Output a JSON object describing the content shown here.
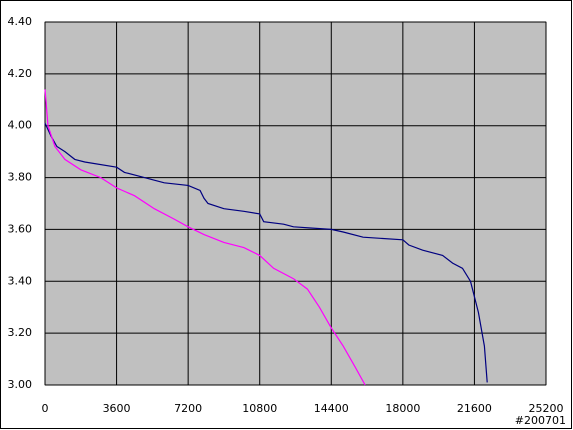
{
  "chart_data": {
    "type": "line",
    "series": [
      {
        "color": "#000080",
        "x": [
          0,
          300,
          600,
          1000,
          1500,
          2000,
          3600,
          4000,
          5000,
          5500,
          6000,
          7200,
          7800,
          8000,
          8200,
          9000,
          10000,
          10800,
          11000,
          12000,
          12500,
          14400,
          15000,
          16000,
          18000,
          18300,
          19000,
          20000,
          20500,
          21000,
          21400,
          21800,
          22100,
          22240
        ],
        "values": [
          4.01,
          3.96,
          3.92,
          3.9,
          3.87,
          3.86,
          3.84,
          3.82,
          3.8,
          3.79,
          3.78,
          3.77,
          3.75,
          3.72,
          3.7,
          3.68,
          3.67,
          3.66,
          3.63,
          3.62,
          3.61,
          3.6,
          3.59,
          3.57,
          3.56,
          3.54,
          3.52,
          3.5,
          3.47,
          3.45,
          3.4,
          3.28,
          3.15,
          3.01
        ]
      },
      {
        "color": "#ff00ff",
        "x": [
          0,
          150,
          500,
          1000,
          1800,
          2800,
          3600,
          4500,
          5500,
          6500,
          7200,
          8000,
          9000,
          10000,
          10800,
          11500,
          12500,
          13200,
          13800,
          14400,
          15000,
          15600,
          16100
        ],
        "values": [
          4.14,
          4.0,
          3.92,
          3.87,
          3.83,
          3.8,
          3.76,
          3.73,
          3.68,
          3.64,
          3.61,
          3.58,
          3.55,
          3.53,
          3.5,
          3.45,
          3.41,
          3.37,
          3.3,
          3.22,
          3.15,
          3.07,
          3.0
        ]
      }
    ],
    "xlim": [
      0,
      25200
    ],
    "xticks": [
      0,
      3600,
      7200,
      10800,
      14400,
      18000,
      21600,
      25200
    ],
    "ylim": [
      3,
      4.4
    ],
    "yticks": [
      {
        "value": 3,
        "label": "3.00"
      },
      {
        "value": 3.2,
        "label": "3.20"
      },
      {
        "value": 3.4,
        "label": "3.40"
      },
      {
        "value": 3.6,
        "label": "3.60"
      },
      {
        "value": 3.8,
        "label": "3.80"
      },
      {
        "value": 4,
        "label": "4.00"
      },
      {
        "value": 4.2,
        "label": "4.20"
      },
      {
        "value": 4.4,
        "label": "4.40"
      }
    ],
    "grid": true,
    "plot_color": "#c0c0c0",
    "annotation": "#200701"
  }
}
